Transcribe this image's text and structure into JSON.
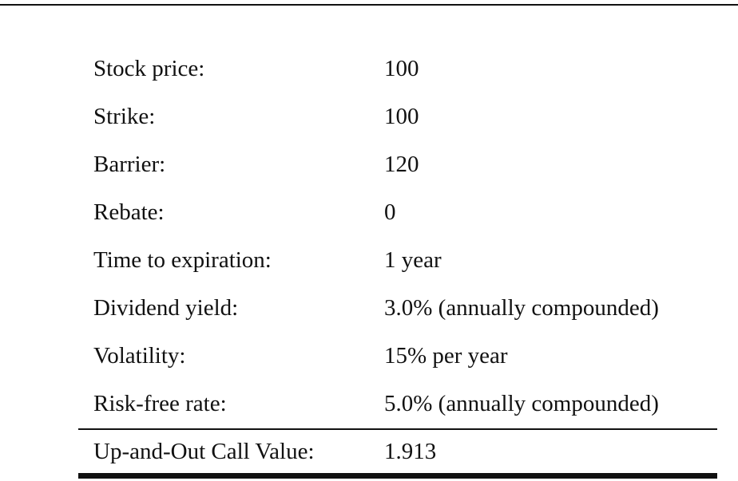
{
  "parameters": [
    {
      "label": "Stock price:",
      "value": "100"
    },
    {
      "label": "Strike:",
      "value": "100"
    },
    {
      "label": "Barrier:",
      "value": "120"
    },
    {
      "label": "Rebate:",
      "value": "0"
    },
    {
      "label": "Time to expiration:",
      "value": "1 year"
    },
    {
      "label": "Dividend yield:",
      "value": "3.0% (annually compounded)"
    },
    {
      "label": "Volatility:",
      "value": "15% per year"
    },
    {
      "label": "Risk-free rate:",
      "value": "5.0% (annually compounded)"
    }
  ],
  "result": {
    "label": "Up-and-Out Call Value:",
    "value": "1.913"
  }
}
